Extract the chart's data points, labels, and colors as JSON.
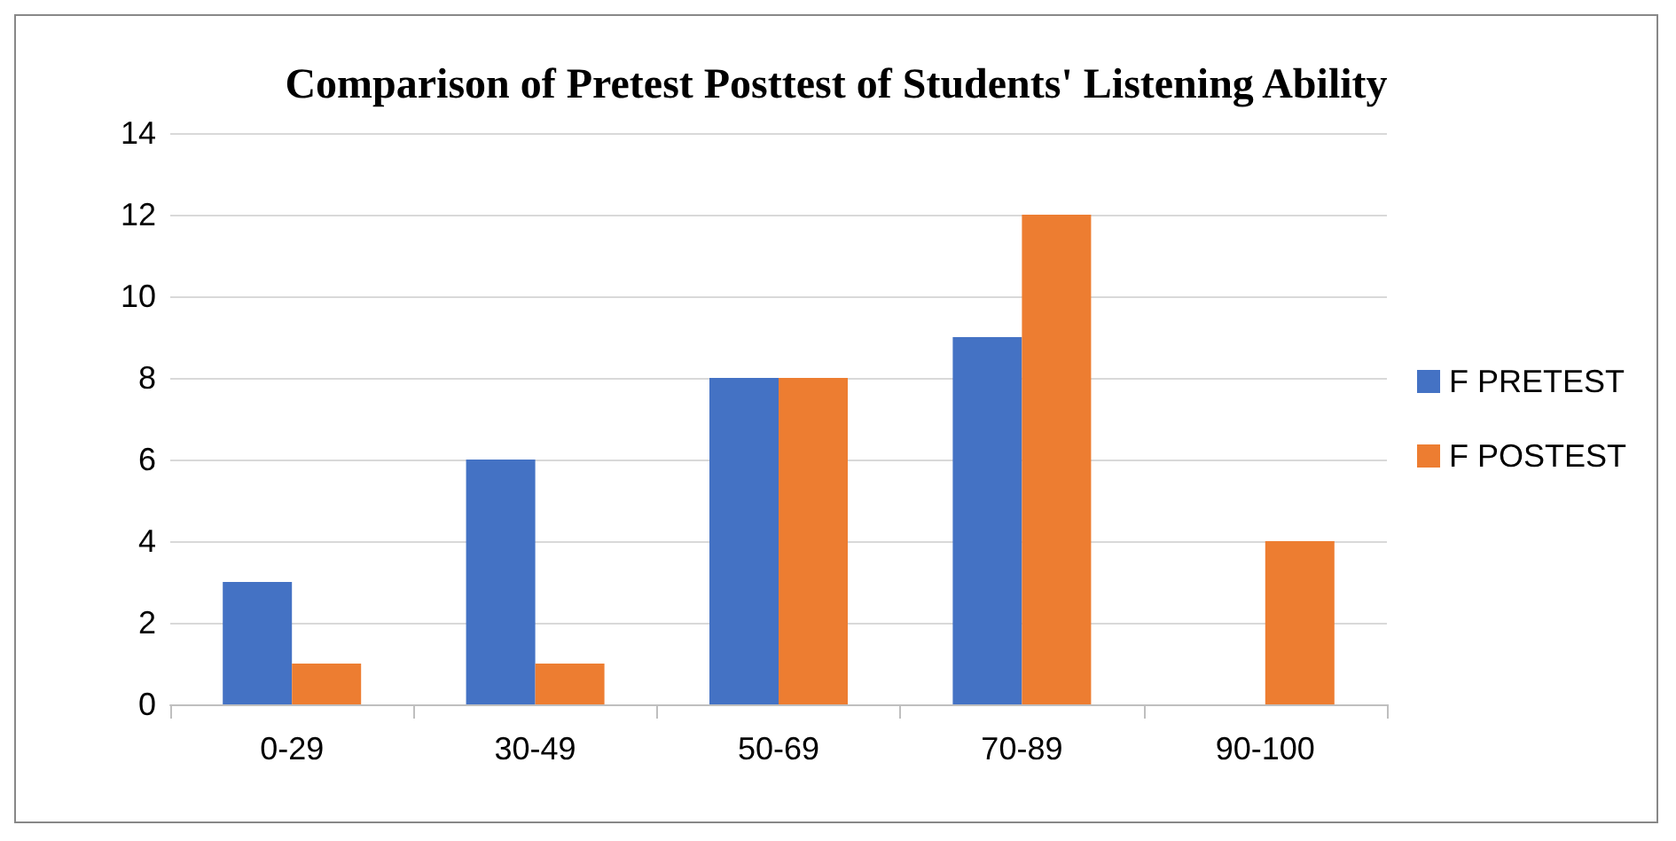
{
  "chart_data": {
    "type": "bar",
    "title": "Comparison of Pretest Posttest of Students' Listening Ability",
    "categories": [
      "0-29",
      "30-49",
      "50-69",
      "70-89",
      "90-100"
    ],
    "series": [
      {
        "name": "F PRETEST",
        "color": "#4472c4",
        "values": [
          3,
          6,
          8,
          9,
          0
        ]
      },
      {
        "name": "F POSTEST",
        "color": "#ed7d31",
        "values": [
          1,
          1,
          8,
          12,
          4
        ]
      }
    ],
    "ylim": [
      0,
      14
    ],
    "yticks": [
      0,
      2,
      4,
      6,
      8,
      10,
      12,
      14
    ],
    "grid": "y",
    "legend": "right"
  }
}
